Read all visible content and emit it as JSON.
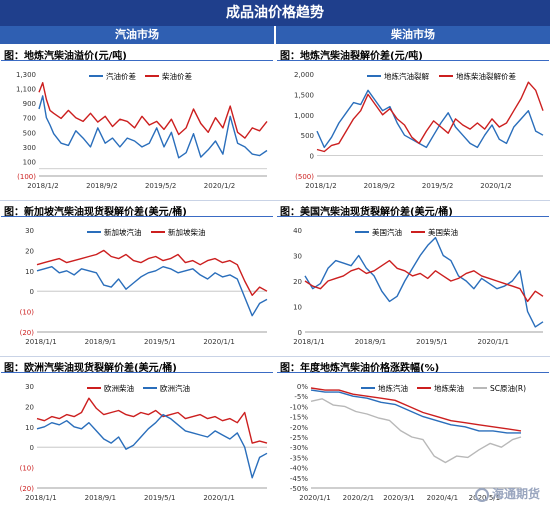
{
  "banner_title": "成品油价格趋势",
  "columns": {
    "left": "汽油市场",
    "right": "柴油市场"
  },
  "watermark": "海通期货",
  "chart_data": [
    {
      "id": "c1",
      "title": "图：地炼汽柴油溢价(元/吨)",
      "type": "line",
      "ylim": [
        -100,
        1300
      ],
      "yticks": [
        -100,
        100,
        300,
        500,
        700,
        900,
        1100,
        1300
      ],
      "ytick_labels": [
        "(100)",
        "100",
        "300",
        "500",
        "700",
        "900",
        "1,100",
        "1,300"
      ],
      "xlim": [
        0,
        31
      ],
      "xticks": [
        0,
        8,
        16,
        24
      ],
      "xtick_labels": [
        "2018/1/2",
        "2018/9/2",
        "2019/5/2",
        "2020/1/2"
      ],
      "legend_position": "top",
      "series": [
        {
          "name": "汽油价差",
          "color": "#2a6ebb",
          "x": [
            0,
            0.5,
            1,
            1.5,
            2,
            3,
            4,
            5,
            6,
            7,
            8,
            9,
            10,
            11,
            12,
            13,
            14,
            15,
            16,
            17,
            18,
            19,
            20,
            21,
            22,
            23,
            24,
            25,
            26,
            27,
            28,
            29,
            30,
            31
          ],
          "y": [
            820,
            1000,
            700,
            600,
            480,
            350,
            320,
            520,
            420,
            300,
            560,
            350,
            420,
            300,
            420,
            380,
            300,
            350,
            560,
            300,
            500,
            150,
            220,
            480,
            160,
            260,
            380,
            200,
            720,
            350,
            300,
            200,
            180,
            250
          ]
        },
        {
          "name": "柴油价差",
          "color": "#cc1f1f",
          "x": [
            0,
            0.5,
            1,
            1.5,
            2,
            3,
            4,
            5,
            6,
            7,
            8,
            9,
            10,
            11,
            12,
            13,
            14,
            15,
            16,
            17,
            18,
            19,
            20,
            21,
            22,
            23,
            24,
            25,
            26,
            27,
            28,
            29,
            30,
            31
          ],
          "y": [
            1050,
            1180,
            950,
            800,
            760,
            690,
            800,
            700,
            650,
            760,
            640,
            720,
            580,
            680,
            650,
            560,
            720,
            600,
            650,
            540,
            680,
            470,
            560,
            820,
            620,
            500,
            700,
            560,
            860,
            500,
            420,
            560,
            520,
            650
          ]
        }
      ]
    },
    {
      "id": "c2",
      "title": "图：地炼汽柴油裂解价差(元/吨)",
      "type": "line",
      "ylim": [
        -500,
        2000
      ],
      "yticks": [
        -500,
        0,
        500,
        1000,
        1500,
        2000
      ],
      "ytick_labels": [
        "(500)",
        "0",
        "500",
        "1,000",
        "1,500",
        "2,000"
      ],
      "xlim": [
        0,
        31
      ],
      "xticks": [
        0,
        8,
        16,
        24
      ],
      "xtick_labels": [
        "2018/1/2",
        "2018/9/2",
        "2019/5/2",
        "2020/1/2"
      ],
      "legend_position": "top",
      "series": [
        {
          "name": "地炼汽油裂解",
          "color": "#2a6ebb",
          "x": [
            0,
            1,
            2,
            3,
            4,
            5,
            6,
            7,
            8,
            9,
            10,
            11,
            12,
            13,
            14,
            15,
            16,
            17,
            18,
            19,
            20,
            21,
            22,
            23,
            24,
            25,
            26,
            27,
            28,
            29,
            30,
            31
          ],
          "y": [
            600,
            200,
            450,
            800,
            1050,
            1300,
            1250,
            1600,
            1350,
            1100,
            1200,
            800,
            500,
            400,
            300,
            200,
            500,
            800,
            1050,
            700,
            500,
            300,
            200,
            500,
            750,
            400,
            300,
            700,
            900,
            1100,
            600,
            500
          ]
        },
        {
          "name": "地炼柴油裂解价差",
          "color": "#cc1f1f",
          "x": [
            0,
            1,
            2,
            3,
            4,
            5,
            6,
            7,
            8,
            9,
            10,
            11,
            12,
            13,
            14,
            15,
            16,
            17,
            18,
            19,
            20,
            21,
            22,
            23,
            24,
            25,
            26,
            27,
            28,
            29,
            30,
            31
          ],
          "y": [
            150,
            100,
            250,
            300,
            600,
            900,
            1100,
            1500,
            1250,
            1000,
            1150,
            900,
            750,
            450,
            300,
            600,
            850,
            700,
            550,
            900,
            750,
            650,
            800,
            650,
            900,
            700,
            800,
            1100,
            1400,
            1800,
            1600,
            1100
          ]
        }
      ]
    },
    {
      "id": "c3",
      "title": "图：新加坡汽柴油现货裂解价差(美元/桶)",
      "type": "line",
      "ylim": [
        -20,
        30
      ],
      "yticks": [
        -20,
        -10,
        0,
        10,
        20,
        30
      ],
      "ytick_labels": [
        "(20)",
        "(10)",
        "0",
        "10",
        "20",
        "30"
      ],
      "xlim": [
        0,
        31
      ],
      "xticks": [
        0,
        8,
        16,
        24
      ],
      "xtick_labels": [
        "2018/1/1",
        "2018/9/1",
        "2019/5/1",
        "2020/1/1"
      ],
      "legend_position": "top",
      "series": [
        {
          "name": "新加坡汽油",
          "color": "#2a6ebb",
          "x": [
            0,
            1,
            2,
            3,
            4,
            5,
            6,
            7,
            8,
            9,
            10,
            11,
            12,
            13,
            14,
            15,
            16,
            17,
            18,
            19,
            20,
            21,
            22,
            23,
            24,
            25,
            26,
            27,
            28,
            29,
            30,
            31
          ],
          "y": [
            10,
            11,
            12,
            9,
            10,
            8,
            11,
            10,
            9,
            3,
            2,
            6,
            1,
            4,
            7,
            9,
            10,
            12,
            11,
            9,
            10,
            11,
            8,
            6,
            9,
            7,
            8,
            6,
            -3,
            -12,
            -6,
            -4
          ]
        },
        {
          "name": "新加坡柴油",
          "color": "#cc1f1f",
          "x": [
            0,
            1,
            2,
            3,
            4,
            5,
            6,
            7,
            8,
            9,
            10,
            11,
            12,
            13,
            14,
            15,
            16,
            17,
            18,
            19,
            20,
            21,
            22,
            23,
            24,
            25,
            26,
            27,
            28,
            29,
            30,
            31
          ],
          "y": [
            13,
            14,
            15,
            16,
            14,
            15,
            16,
            17,
            18,
            20,
            17,
            16,
            18,
            15,
            14,
            16,
            17,
            15,
            16,
            18,
            14,
            15,
            13,
            15,
            16,
            14,
            15,
            13,
            5,
            -2,
            2,
            0
          ]
        }
      ]
    },
    {
      "id": "c4",
      "title": "图：美国汽柴油现货裂解价差(美元/桶)",
      "type": "line",
      "ylim": [
        0,
        40
      ],
      "yticks": [
        0,
        10,
        20,
        30,
        40
      ],
      "ytick_labels": [
        "0",
        "10",
        "20",
        "30",
        "40"
      ],
      "xlim": [
        0,
        31
      ],
      "xticks": [
        0,
        8,
        16,
        24
      ],
      "xtick_labels": [
        "2018/1/1",
        "2018/9/1",
        "2019/5/1",
        "2020/1/1"
      ],
      "legend_position": "top",
      "series": [
        {
          "name": "美国汽油",
          "color": "#2a6ebb",
          "x": [
            0,
            1,
            2,
            3,
            4,
            5,
            6,
            7,
            8,
            9,
            10,
            11,
            12,
            13,
            14,
            15,
            16,
            17,
            18,
            19,
            20,
            21,
            22,
            23,
            24,
            25,
            26,
            27,
            28,
            29,
            30,
            31
          ],
          "y": [
            22,
            17,
            19,
            25,
            28,
            27,
            26,
            30,
            25,
            22,
            16,
            12,
            14,
            20,
            25,
            30,
            34,
            37,
            30,
            28,
            22,
            20,
            17,
            21,
            19,
            17,
            18,
            20,
            24,
            8,
            2,
            4
          ]
        },
        {
          "name": "美国柴油",
          "color": "#cc1f1f",
          "x": [
            0,
            1,
            2,
            3,
            4,
            5,
            6,
            7,
            8,
            9,
            10,
            11,
            12,
            13,
            14,
            15,
            16,
            17,
            18,
            19,
            20,
            21,
            22,
            23,
            24,
            25,
            26,
            27,
            28,
            29,
            30,
            31
          ],
          "y": [
            20,
            18,
            17,
            20,
            21,
            22,
            24,
            25,
            23,
            24,
            26,
            28,
            25,
            24,
            22,
            23,
            21,
            24,
            22,
            20,
            21,
            23,
            24,
            22,
            21,
            20,
            19,
            18,
            17,
            12,
            16,
            14
          ]
        }
      ]
    },
    {
      "id": "c5",
      "title": "图：欧洲汽柴油现货裂解价差(美元/桶)",
      "type": "line",
      "ylim": [
        -20,
        30
      ],
      "yticks": [
        -20,
        -10,
        0,
        10,
        20,
        30
      ],
      "ytick_labels": [
        "(20)",
        "(10)",
        "0",
        "10",
        "20",
        "30"
      ],
      "xlim": [
        0,
        31
      ],
      "xticks": [
        0,
        8,
        16,
        24
      ],
      "xtick_labels": [
        "2018/1/1",
        "2018/9/1",
        "2019/5/1",
        "2020/1/1"
      ],
      "legend_position": "top",
      "series": [
        {
          "name": "欧洲柴油",
          "color": "#cc1f1f",
          "x": [
            0,
            1,
            2,
            3,
            4,
            5,
            6,
            7,
            8,
            9,
            10,
            11,
            12,
            13,
            14,
            15,
            16,
            17,
            18,
            19,
            20,
            21,
            22,
            23,
            24,
            25,
            26,
            27,
            28,
            29,
            30,
            31
          ],
          "y": [
            14,
            13,
            15,
            14,
            16,
            15,
            17,
            24,
            19,
            16,
            17,
            18,
            16,
            15,
            17,
            16,
            18,
            15,
            16,
            17,
            14,
            15,
            16,
            14,
            15,
            13,
            14,
            12,
            17,
            2,
            3,
            2
          ]
        },
        {
          "name": "欧洲汽油",
          "color": "#2a6ebb",
          "x": [
            0,
            1,
            2,
            3,
            4,
            5,
            6,
            7,
            8,
            9,
            10,
            11,
            12,
            13,
            14,
            15,
            16,
            17,
            18,
            19,
            20,
            21,
            22,
            23,
            24,
            25,
            26,
            27,
            28,
            29,
            30,
            31
          ],
          "y": [
            9,
            10,
            12,
            11,
            13,
            10,
            9,
            12,
            8,
            4,
            2,
            5,
            -1,
            1,
            5,
            9,
            12,
            16,
            14,
            11,
            8,
            7,
            6,
            5,
            8,
            6,
            4,
            7,
            0,
            -15,
            -5,
            -3
          ]
        }
      ]
    },
    {
      "id": "c6",
      "title": "图：年度地炼汽柴油价格涨跌幅(%)",
      "type": "line",
      "ylim": [
        -50,
        0
      ],
      "yticks": [
        -50,
        -45,
        -40,
        -35,
        -30,
        -25,
        -20,
        -15,
        -10,
        -5,
        0
      ],
      "ytick_labels": [
        "-50%",
        "-45%",
        "-40%",
        "-35%",
        "-30%",
        "-25%",
        "-20%",
        "-15%",
        "-10%",
        "-5%",
        "0%"
      ],
      "y2lim": [
        -70,
        10
      ],
      "xlim": [
        0,
        150
      ],
      "xticks": [
        0,
        31,
        60,
        91,
        121
      ],
      "xtick_labels": [
        "2020/1/1",
        "2020/2/1",
        "2020/3/1",
        "2020/4/1",
        "2020/5/1"
      ],
      "legend_position": "top",
      "series": [
        {
          "name": "地炼汽油",
          "color": "#2a6ebb",
          "x": [
            0,
            10,
            20,
            30,
            40,
            50,
            60,
            70,
            80,
            90,
            100,
            110,
            120,
            130,
            140,
            150
          ],
          "y": [
            -2,
            -3,
            -3,
            -5,
            -6,
            -8,
            -9,
            -12,
            -15,
            -17,
            -19,
            -20,
            -22,
            -22,
            -23,
            -23
          ]
        },
        {
          "name": "地炼柴油",
          "color": "#cc1f1f",
          "x": [
            0,
            10,
            20,
            30,
            40,
            50,
            60,
            70,
            80,
            90,
            100,
            110,
            120,
            130,
            140,
            150
          ],
          "y": [
            -1,
            -2,
            -2,
            -4,
            -5,
            -6,
            -7,
            -10,
            -13,
            -15,
            -17,
            -18,
            -19,
            -20,
            -21,
            -22
          ]
        },
        {
          "name": "SC原油(R)",
          "color": "#b8b8b8",
          "axis": "right",
          "x": [
            0,
            8,
            16,
            24,
            32,
            40,
            48,
            56,
            64,
            72,
            80,
            88,
            96,
            104,
            112,
            120,
            128,
            136,
            144,
            150
          ],
          "y": [
            -2,
            0,
            -5,
            -6,
            -10,
            -12,
            -15,
            -17,
            -25,
            -30,
            -32,
            -45,
            -50,
            -45,
            -46,
            -40,
            -35,
            -38,
            -32,
            -30
          ]
        }
      ]
    }
  ]
}
